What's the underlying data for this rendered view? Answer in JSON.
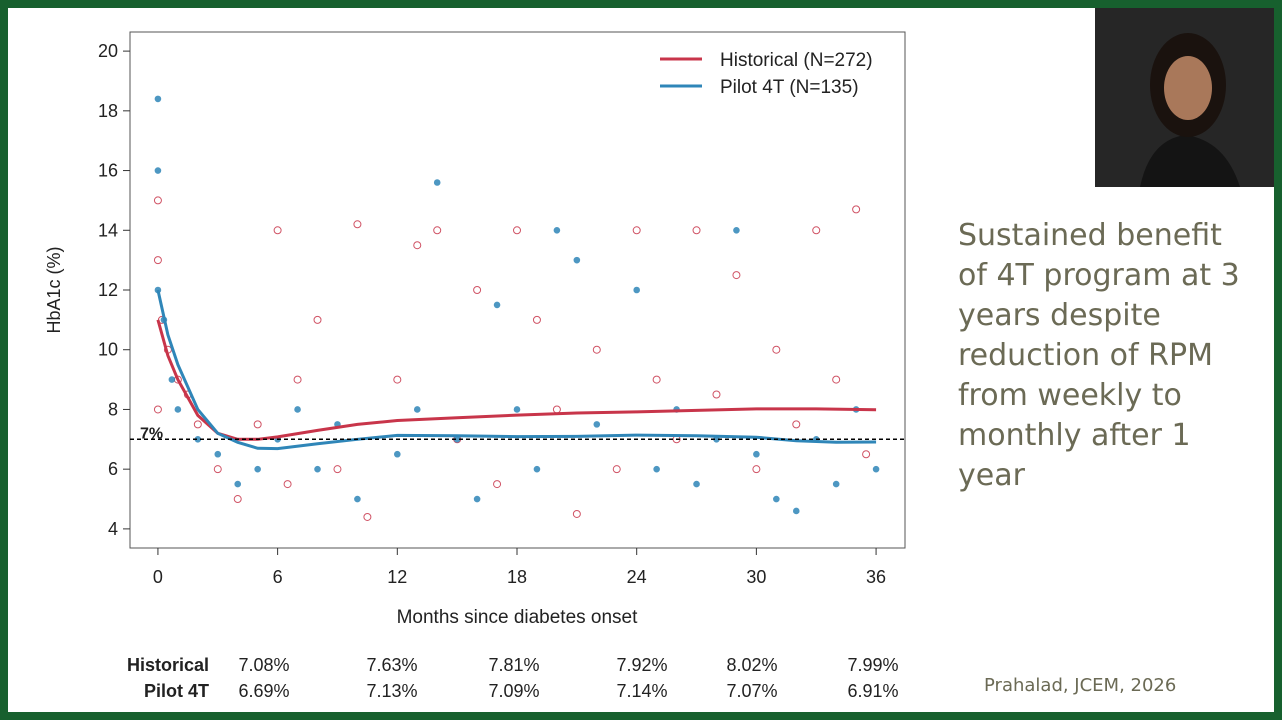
{
  "chart_data": {
    "type": "scatter",
    "xlabel": "Months since diabetes onset",
    "ylabel": "HbA1c (%)",
    "xlim": [
      -1.4,
      37.45
    ],
    "ylim": [
      3.36,
      20.64
    ],
    "xticks": [
      0,
      6,
      12,
      18,
      24,
      30,
      36
    ],
    "yticks": [
      4,
      6,
      8,
      10,
      12,
      14,
      16,
      18,
      20
    ],
    "reference_line": {
      "value": 7,
      "label": "7%"
    },
    "legend": "upper right",
    "series": [
      {
        "name": "Historical (N=272)",
        "color": "#c8354a",
        "marker": "open",
        "x": [
          0,
          0.5,
          1,
          2,
          3,
          4,
          5,
          6,
          8,
          10,
          12,
          15,
          18,
          21,
          24,
          27,
          30,
          33,
          36
        ],
        "values": [
          11,
          9.8,
          9,
          7.8,
          7.2,
          7.0,
          7.0,
          7.08,
          7.3,
          7.5,
          7.63,
          7.72,
          7.81,
          7.88,
          7.92,
          7.97,
          8.02,
          8.02,
          7.99
        ],
        "points_x": [
          0,
          0,
          0,
          0.2,
          0.5,
          1,
          1.5,
          2,
          3,
          4,
          5,
          6,
          6.5,
          7,
          8,
          9,
          10,
          10.5,
          12,
          13,
          14,
          15,
          16,
          17,
          18,
          19,
          20,
          21,
          22,
          23,
          24,
          25,
          26,
          27,
          28,
          29,
          30,
          31,
          32,
          33,
          34,
          35,
          35.5
        ],
        "points_y": [
          15,
          13,
          8,
          11,
          10,
          9,
          8.5,
          7.5,
          6,
          5,
          7.5,
          14,
          5.5,
          9,
          11,
          6,
          14.2,
          4.4,
          9,
          13.5,
          14,
          7,
          12,
          5.5,
          14,
          11,
          8,
          4.5,
          10,
          6,
          14,
          9,
          7,
          14,
          8.5,
          12.5,
          6,
          10,
          7.5,
          14,
          9,
          14.7,
          6.5
        ]
      },
      {
        "name": "Pilot 4T (N=135)",
        "color": "#2f86b8",
        "marker": "filled",
        "x": [
          0,
          0.5,
          1,
          2,
          3,
          4,
          5,
          6,
          8,
          10,
          12,
          15,
          18,
          21,
          24,
          27,
          30,
          32,
          34,
          36
        ],
        "values": [
          12,
          10.5,
          9.5,
          8,
          7.2,
          6.9,
          6.7,
          6.69,
          6.85,
          7.0,
          7.13,
          7.12,
          7.09,
          7.1,
          7.14,
          7.12,
          7.07,
          6.95,
          6.9,
          6.91
        ],
        "points_x": [
          0,
          0,
          0,
          0.3,
          0.7,
          1,
          2,
          3,
          4,
          5,
          6,
          7,
          8,
          9,
          10,
          12,
          13,
          14,
          15,
          16,
          17,
          18,
          19,
          20,
          21,
          22,
          24,
          25,
          26,
          27,
          28,
          29,
          30,
          31,
          32,
          33,
          34,
          35,
          36
        ],
        "points_y": [
          18.4,
          16,
          12,
          11,
          9,
          8,
          7,
          6.5,
          5.5,
          6,
          7,
          8,
          6,
          7.5,
          5,
          6.5,
          8,
          15.6,
          7,
          5,
          11.5,
          8,
          6,
          14,
          13,
          7.5,
          12,
          6,
          8,
          5.5,
          7,
          14,
          6.5,
          5,
          4.6,
          7,
          5.5,
          8,
          6
        ]
      }
    ]
  },
  "table": {
    "rows": [
      [
        "Historical",
        "7.08%",
        "7.63%",
        "7.81%",
        "7.92%",
        "8.02%",
        "7.99%"
      ],
      [
        "Pilot 4T",
        "6.69%",
        "7.13%",
        "7.09%",
        "7.14%",
        "7.07%",
        "6.91%"
      ]
    ]
  },
  "side_text": "Sustained benefit of 4T program at 3 years despite reduction of RPM from weekly to monthly after 1 year",
  "citation": "Prahalad, JCEM, 2026"
}
